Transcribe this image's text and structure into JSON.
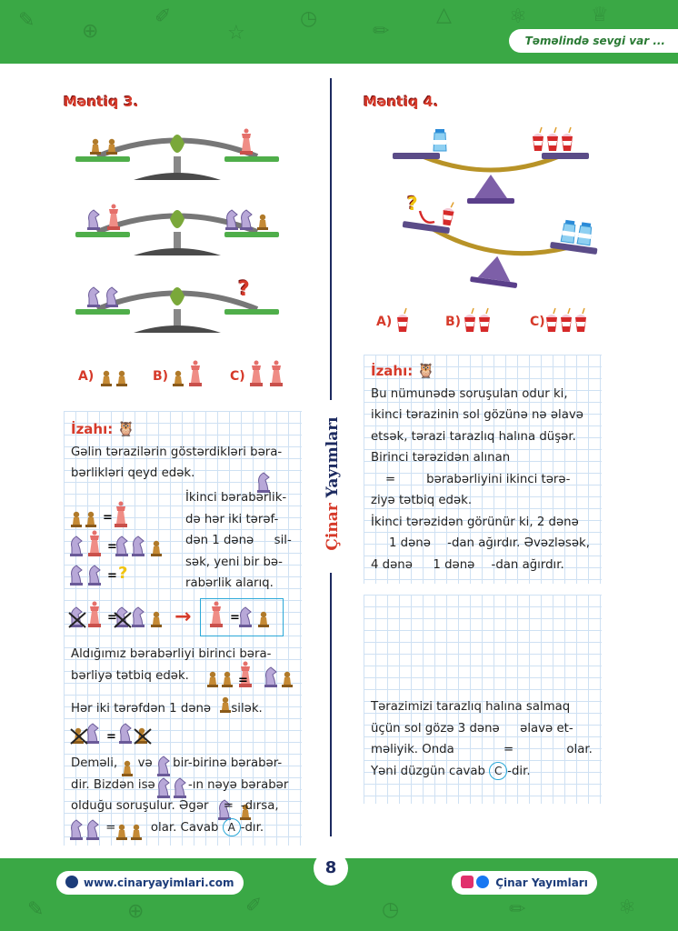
{
  "header": {
    "motto": "Təməlində sevgi var ..."
  },
  "footer": {
    "website": "www.cinaryayimlari.com",
    "brand": "Çinar Yayımları",
    "page": "8"
  },
  "side_label": {
    "red": "Çinar",
    "blue": "Yayımları"
  },
  "left": {
    "title": "Məntiq 3.",
    "options": [
      "A)",
      "B)",
      "C)"
    ],
    "question_mark": "?",
    "izahi": "İzahı:",
    "p1": [
      "Gəlin tərazilərin göstərdikləri bəra-",
      "bərlikləri qeyd edək."
    ],
    "p2": [
      "İkinci bərabərlik-",
      "də hər iki tərəf-",
      "dən 1 dənə",
      "sil-",
      "sək, yeni bir bə-",
      "rabərlik alarıq."
    ],
    "p3": [
      "Aldığımız bərabərliyi birinci bəra-",
      "bərliyə tətbiq edək."
    ],
    "p4a": "Hər iki tərəfdən 1 dənə",
    "p4b": "silək.",
    "p5": [
      "Deməli,",
      "və",
      "bir-birinə bərabər-",
      "dir. Bizdən isə",
      "-ın nəyə bərabər",
      "olduğu soruşulur. Əgər",
      "-dırsa,",
      "olar. Cavab",
      "-dır."
    ],
    "answer": "A",
    "eq": "="
  },
  "right": {
    "title": "Məntiq 4.",
    "options": [
      "A)",
      "B)",
      "C)"
    ],
    "question_mark": "?",
    "izahi": "İzahı:",
    "p1": [
      "Bu nümunədə soruşulan odur ki,",
      "ikinci tərazinin sol gözünə nə əlavə",
      "etsək, tərazi tarazlıq halına düşər.",
      "Birinci tərəzidən alınan"
    ],
    "p2a": "bərabərliyini ikinci tərə-",
    "p2b": "ziyə tətbiq edək.",
    "p3": [
      "İkinci tərəzidən görünür ki, 2 dənə",
      "1 dənə",
      "-dan ağırdır. Əvəzləsək,",
      "4 dənə",
      "1 dənə",
      "-dan ağırdır."
    ],
    "p4": [
      "Tərazimizi tarazlıq halına salmaq",
      "üçün sol gözə 3 dənə",
      "əlavə et-",
      "məliyik. Onda",
      "olar.",
      "Yəni düzgün cavab",
      "-dir."
    ],
    "answer": "C",
    "eq": "="
  },
  "colors": {
    "green": "#3aa845",
    "red": "#d63a2a",
    "navy": "#1c2a60",
    "grid": "#cfe1f3",
    "pan_green": "#4fae4a",
    "pan_purple": "#7d5fa8",
    "beam_gold": "#b89327"
  }
}
